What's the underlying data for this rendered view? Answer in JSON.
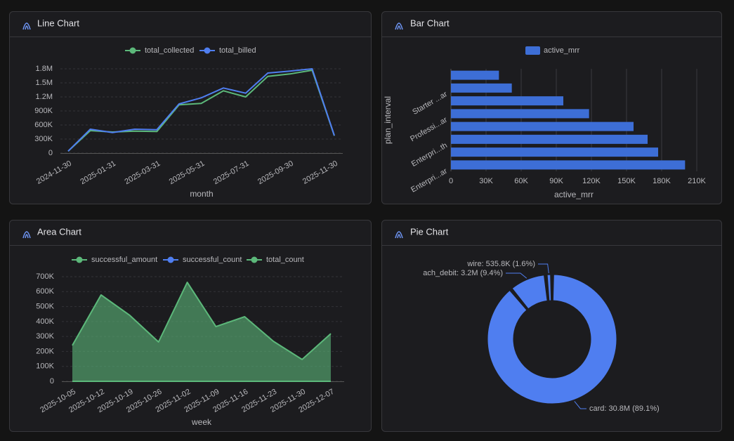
{
  "chart_data": [
    {
      "type": "line",
      "title": "Line Chart",
      "x_label": "month",
      "categories": [
        "2024-11-30",
        null,
        "2025-01-31",
        null,
        "2025-03-31",
        null,
        "2025-05-31",
        null,
        "2025-07-31",
        null,
        "2025-09-30",
        null,
        "2025-11-30"
      ],
      "series": [
        {
          "name": "total_collected",
          "color": "#5cb87a",
          "values": [
            40000,
            480000,
            450000,
            470000,
            460000,
            1030000,
            1060000,
            1330000,
            1200000,
            1640000,
            1690000,
            1770000,
            370000
          ]
        },
        {
          "name": "total_billed",
          "color": "#4f7ef0",
          "values": [
            40000,
            510000,
            440000,
            510000,
            500000,
            1050000,
            1180000,
            1390000,
            1280000,
            1710000,
            1750000,
            1800000,
            375000
          ]
        }
      ],
      "ylim": [
        0,
        1800000
      ],
      "yticks": [
        0,
        {
          "value": 300000,
          "label": "300K"
        },
        {
          "value": 600000,
          "label": "600K"
        },
        {
          "value": 900000,
          "label": "900K"
        },
        {
          "value": 1200000,
          "label": "1.2M"
        },
        {
          "value": 1500000,
          "label": "1.5M"
        },
        {
          "value": 1800000,
          "label": "1.8M"
        }
      ],
      "grid": true,
      "legend": "top"
    },
    {
      "type": "bar",
      "orientation": "horizontal",
      "title": "Bar Chart",
      "x_label": "active_mrr",
      "y_label": "plan_interval",
      "categories": [
        "Enterpri...ar",
        null,
        "Enterpri...th",
        null,
        "Professi...ar",
        null,
        "Starter ...ar",
        null
      ],
      "series": [
        {
          "name": "active_mrr",
          "color": "#3d6ed6",
          "values": [
            200000,
            177000,
            168000,
            156000,
            118000,
            96000,
            52000,
            41000
          ]
        }
      ],
      "xlim": [
        0,
        210000
      ],
      "xticks": [
        0,
        {
          "value": 30000,
          "label": "30K"
        },
        {
          "value": 60000,
          "label": "60K"
        },
        {
          "value": 90000,
          "label": "90K"
        },
        {
          "value": 120000,
          "label": "120K"
        },
        {
          "value": 150000,
          "label": "150K"
        },
        {
          "value": 180000,
          "label": "180K"
        },
        {
          "value": 210000,
          "label": "210K"
        }
      ],
      "grid": true,
      "legend": "top"
    },
    {
      "type": "area",
      "title": "Area Chart",
      "x_label": "week",
      "categories": [
        "2025-10-05",
        "2025-10-12",
        "2025-10-19",
        "2025-10-26",
        "2025-11-02",
        "2025-11-09",
        "2025-11-16",
        "2025-11-23",
        "2025-11-30",
        "2025-12-07"
      ],
      "series": [
        {
          "name": "successful_amount",
          "color": "#5cb87a",
          "values": [
            240000,
            578000,
            441000,
            263000,
            662000,
            366000,
            432000,
            268000,
            146000,
            319000
          ]
        },
        {
          "name": "successful_count",
          "color": "#4f7ef0",
          "values": [
            0,
            0,
            0,
            0,
            0,
            0,
            0,
            0,
            0,
            0
          ]
        },
        {
          "name": "total_count",
          "color": "#5cb87a",
          "values": [
            0,
            0,
            0,
            0,
            0,
            0,
            0,
            0,
            0,
            0
          ]
        }
      ],
      "ylim": [
        0,
        700000
      ],
      "yticks": [
        0,
        {
          "value": 100000,
          "label": "100K"
        },
        {
          "value": 200000,
          "label": "200K"
        },
        {
          "value": 300000,
          "label": "300K"
        },
        {
          "value": 400000,
          "label": "400K"
        },
        {
          "value": 500000,
          "label": "500K"
        },
        {
          "value": 600000,
          "label": "600K"
        },
        {
          "value": 700000,
          "label": "700K"
        }
      ],
      "grid": true,
      "legend": "top"
    },
    {
      "type": "pie",
      "title": "Pie Chart",
      "donut": true,
      "values": [
        89.1,
        9.4,
        1.6
      ],
      "value_labels": [
        "card: 30.8M (89.1%)",
        "ach_debit: 3.2M (9.4%)",
        "wire: 535.8K (1.6%)"
      ],
      "color": "#4f7ef0"
    }
  ]
}
